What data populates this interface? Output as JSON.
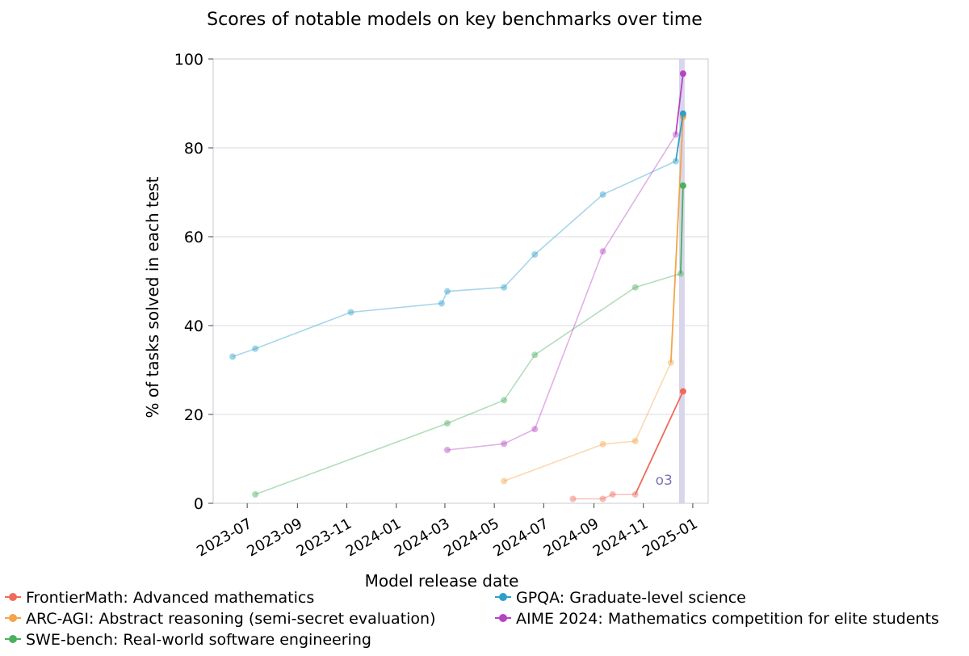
{
  "chart_data": {
    "type": "line",
    "title": "Scores of notable models on key benchmarks over time",
    "xlabel": "Model release date",
    "ylabel": "% of tasks solved in each test",
    "ylim": [
      0,
      100
    ],
    "xlim": [
      "2023-05-20",
      "2025-01-20"
    ],
    "yticks": [
      0,
      20,
      40,
      60,
      80,
      100
    ],
    "xticks": [
      "2023-07",
      "2023-09",
      "2023-11",
      "2024-01",
      "2024-03",
      "2024-05",
      "2024-07",
      "2024-09",
      "2024-11",
      "2025-01"
    ],
    "grid": true,
    "legend_position": "bottom",
    "highlight": {
      "start": "2024-12-15",
      "end": "2024-12-22",
      "label": "o3",
      "color": "#d9d6ec",
      "label_color": "#7b73b6"
    },
    "series": [
      {
        "name": "FrontierMath: Advanced mathematics",
        "color": "#ef6a5a",
        "x": [
          "2024-08-06",
          "2024-09-12",
          "2024-09-24",
          "2024-10-22",
          "2024-12-20"
        ],
        "y": [
          1,
          1,
          2,
          2,
          25.2
        ]
      },
      {
        "name": "ARC-AGI: Abstract reasoning (semi-secret evaluation)",
        "color": "#f3a54a",
        "x": [
          "2024-05-13",
          "2024-09-12",
          "2024-10-22",
          "2024-12-05",
          "2024-12-20"
        ],
        "y": [
          5,
          13.3,
          14,
          31.7,
          87
        ]
      },
      {
        "name": "SWE-bench: Real-world software engineering",
        "color": "#4ab05c",
        "x": [
          "2023-07-11",
          "2024-03-04",
          "2024-05-13",
          "2024-06-20",
          "2024-10-22",
          "2024-12-17",
          "2024-12-20"
        ],
        "y": [
          2,
          18,
          23.2,
          33.4,
          48.6,
          51.7,
          71.5
        ]
      },
      {
        "name": "GPQA: Graduate-level science",
        "color": "#2f9fc9",
        "x": [
          "2023-06-13",
          "2023-07-11",
          "2023-11-06",
          "2024-02-26",
          "2024-03-04",
          "2024-05-13",
          "2024-06-20",
          "2024-09-12",
          "2024-12-11",
          "2024-12-20"
        ],
        "y": [
          33,
          34.8,
          43,
          45,
          47.7,
          48.6,
          56,
          69.5,
          77,
          87.7
        ]
      },
      {
        "name": "AIME 2024: Mathematics competition for elite students",
        "color": "#b544c4",
        "x": [
          "2024-03-04",
          "2024-05-13",
          "2024-06-20",
          "2024-09-12",
          "2024-12-11",
          "2024-12-20"
        ],
        "y": [
          12,
          13.4,
          16.7,
          56.7,
          83,
          96.7
        ]
      }
    ]
  }
}
